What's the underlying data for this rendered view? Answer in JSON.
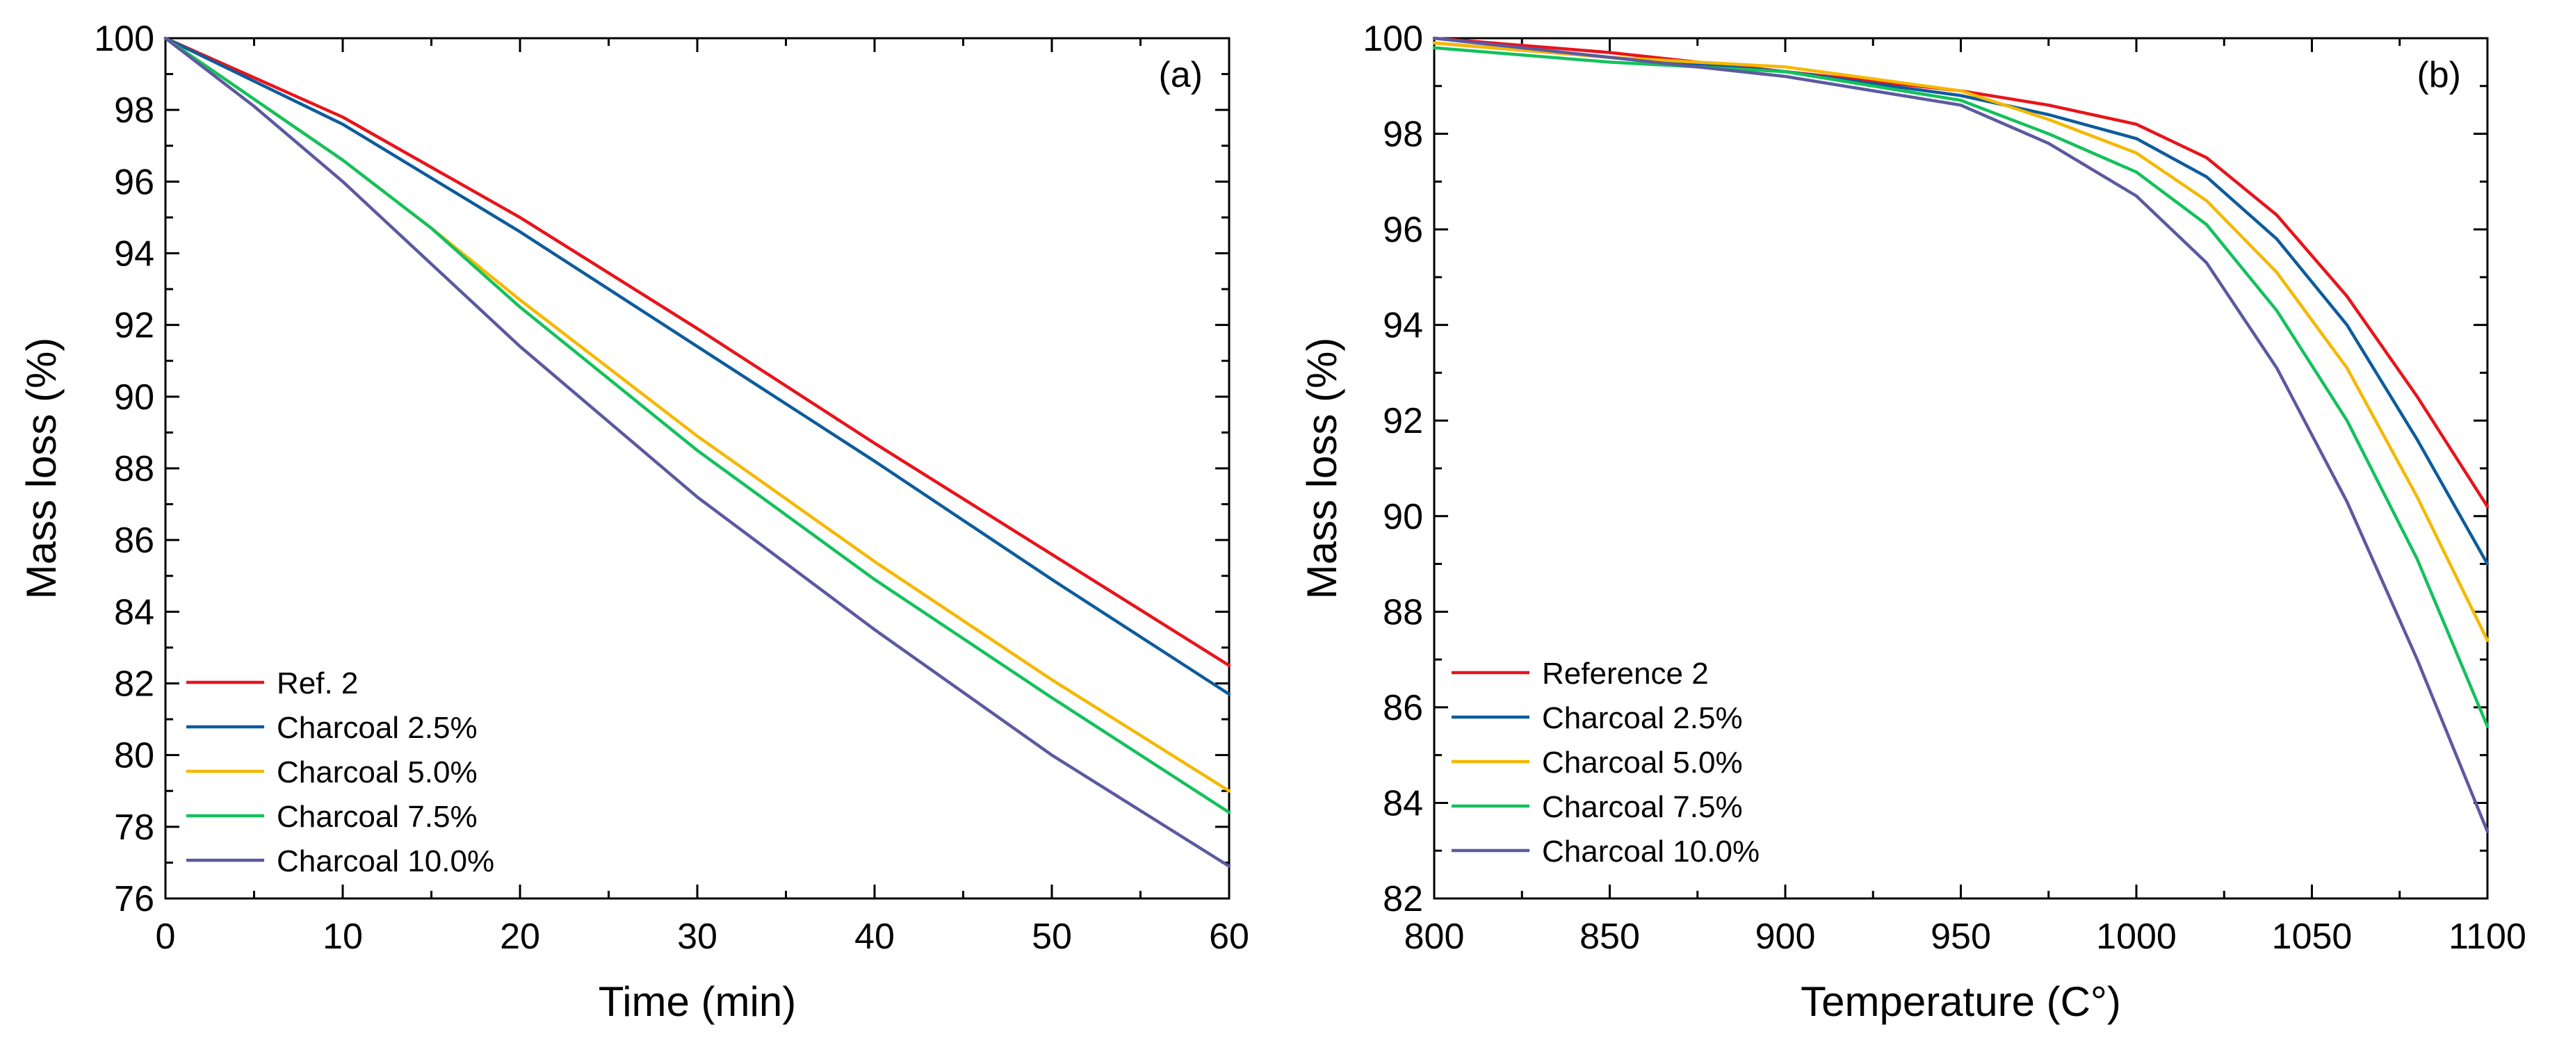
{
  "chart_data": [
    {
      "id": "a",
      "type": "line",
      "panel_label": "(a)",
      "xlabel": "Time (min)",
      "ylabel": "Mass loss (%)",
      "xlim": [
        0,
        60
      ],
      "ylim": [
        76,
        100
      ],
      "xticks": [
        0,
        10,
        20,
        30,
        40,
        50,
        60
      ],
      "yticks": [
        76,
        78,
        80,
        82,
        84,
        86,
        88,
        90,
        92,
        94,
        96,
        98,
        100
      ],
      "legend_position": "bottom-left",
      "series": [
        {
          "name": "Ref. 2",
          "color": "#e8141b",
          "x": [
            0,
            5,
            10,
            20,
            30,
            40,
            50,
            60
          ],
          "y": [
            100,
            98.9,
            97.8,
            95.0,
            91.9,
            88.7,
            85.6,
            82.5
          ]
        },
        {
          "name": "Charcoal 2.5%",
          "color": "#0d5c9c",
          "x": [
            0,
            5,
            10,
            20,
            30,
            40,
            50,
            60
          ],
          "y": [
            100,
            98.8,
            97.6,
            94.6,
            91.4,
            88.2,
            84.9,
            81.7
          ]
        },
        {
          "name": "Charcoal 5.0%",
          "color": "#f5b800",
          "x": [
            0,
            5,
            10,
            15,
            20,
            30,
            40,
            50,
            60
          ],
          "y": [
            100,
            98.3,
            96.6,
            94.7,
            92.7,
            88.9,
            85.4,
            82.1,
            79.0
          ]
        },
        {
          "name": "Charcoal 7.5%",
          "color": "#13c15c",
          "x": [
            0,
            5,
            10,
            15,
            20,
            30,
            40,
            50,
            60
          ],
          "y": [
            100,
            98.3,
            96.6,
            94.7,
            92.5,
            88.5,
            84.9,
            81.6,
            78.4
          ]
        },
        {
          "name": "Charcoal 10.0%",
          "color": "#5c59a0",
          "x": [
            0,
            5,
            10,
            15,
            20,
            30,
            40,
            50,
            60
          ],
          "y": [
            100,
            98.1,
            96.0,
            93.7,
            91.4,
            87.2,
            83.5,
            80.0,
            76.9
          ]
        }
      ]
    },
    {
      "id": "b",
      "type": "line",
      "panel_label": "(b)",
      "xlabel": "Temperature (C°)",
      "ylabel": "Mass loss (%)",
      "xlim": [
        800,
        1100
      ],
      "ylim": [
        82,
        100
      ],
      "xticks": [
        800,
        850,
        900,
        950,
        1000,
        1050,
        1100
      ],
      "yticks": [
        82,
        84,
        86,
        88,
        90,
        92,
        94,
        96,
        98,
        100
      ],
      "legend_position": "bottom-left",
      "series": [
        {
          "name": "Reference 2",
          "color": "#e8141b",
          "x": [
            800,
            850,
            900,
            950,
            975,
            1000,
            1020,
            1040,
            1060,
            1080,
            1100
          ],
          "y": [
            100,
            99.7,
            99.3,
            98.9,
            98.6,
            98.2,
            97.5,
            96.3,
            94.6,
            92.5,
            90.2
          ]
        },
        {
          "name": "Charcoal 2.5%",
          "color": "#0d5c9c",
          "x": [
            800,
            850,
            900,
            950,
            975,
            1000,
            1020,
            1040,
            1060,
            1080,
            1100
          ],
          "y": [
            99.9,
            99.6,
            99.3,
            98.8,
            98.4,
            97.9,
            97.1,
            95.8,
            94.0,
            91.6,
            89.0
          ]
        },
        {
          "name": "Charcoal 5.0%",
          "color": "#f5b800",
          "x": [
            800,
            850,
            900,
            950,
            975,
            1000,
            1020,
            1040,
            1060,
            1080,
            1100
          ],
          "y": [
            99.9,
            99.6,
            99.4,
            98.9,
            98.3,
            97.6,
            96.6,
            95.1,
            93.1,
            90.4,
            87.4
          ]
        },
        {
          "name": "Charcoal 7.5%",
          "color": "#13c15c",
          "x": [
            800,
            850,
            900,
            950,
            975,
            1000,
            1020,
            1040,
            1060,
            1080,
            1100
          ],
          "y": [
            99.8,
            99.5,
            99.3,
            98.7,
            98.0,
            97.2,
            96.1,
            94.3,
            92.0,
            89.1,
            85.6
          ]
        },
        {
          "name": "Charcoal 10.0%",
          "color": "#5c59a0",
          "x": [
            800,
            850,
            900,
            950,
            975,
            1000,
            1020,
            1040,
            1060,
            1080,
            1100
          ],
          "y": [
            100,
            99.6,
            99.2,
            98.6,
            97.8,
            96.7,
            95.3,
            93.1,
            90.3,
            87.0,
            83.4
          ]
        }
      ]
    }
  ]
}
